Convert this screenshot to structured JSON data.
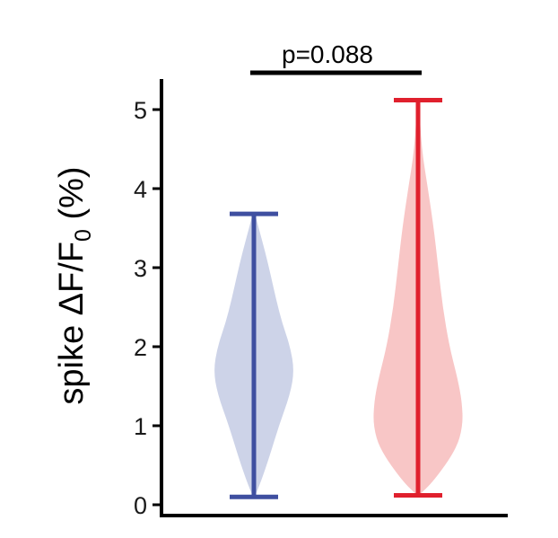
{
  "chart_data": {
    "type": "violin",
    "title": "",
    "xlabel": "",
    "ylabel": {
      "prefix": "spike ΔF/F",
      "subscript": "0",
      "suffix": " (%)"
    },
    "ylim": [
      0,
      5.3
    ],
    "yticks": [
      "0",
      "1",
      "2",
      "3",
      "4",
      "5"
    ],
    "grid": false,
    "legend": "none",
    "annotation": {
      "text": "p=0.088",
      "between": [
        0,
        1
      ]
    },
    "series": [
      {
        "color": "#3f4fa0",
        "fill": "#cdd3e8",
        "min": 0.1,
        "max": 3.68,
        "density": [
          [
            0.1,
            0.02
          ],
          [
            0.3,
            0.18
          ],
          [
            0.6,
            0.38
          ],
          [
            1.0,
            0.62
          ],
          [
            1.4,
            0.9
          ],
          [
            1.7,
            1.0
          ],
          [
            2.0,
            0.9
          ],
          [
            2.3,
            0.7
          ],
          [
            2.6,
            0.55
          ],
          [
            2.9,
            0.42
          ],
          [
            3.2,
            0.28
          ],
          [
            3.5,
            0.12
          ],
          [
            3.68,
            0.03
          ]
        ]
      },
      {
        "color": "#e0202d",
        "fill": "#f8c6c6",
        "min": 0.12,
        "max": 5.12,
        "density": [
          [
            0.12,
            0.02
          ],
          [
            0.3,
            0.35
          ],
          [
            0.7,
            0.85
          ],
          [
            1.0,
            1.0
          ],
          [
            1.3,
            0.98
          ],
          [
            1.6,
            0.88
          ],
          [
            2.0,
            0.7
          ],
          [
            2.5,
            0.55
          ],
          [
            3.0,
            0.45
          ],
          [
            3.5,
            0.35
          ],
          [
            4.0,
            0.22
          ],
          [
            4.5,
            0.08
          ],
          [
            5.12,
            0.02
          ]
        ]
      }
    ]
  }
}
